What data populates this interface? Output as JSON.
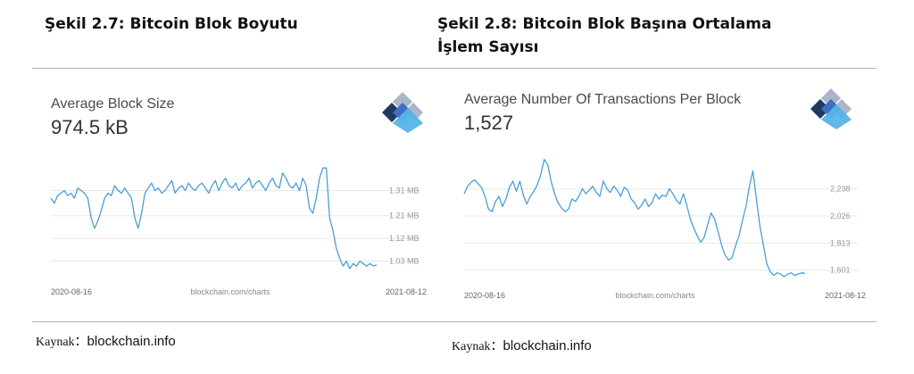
{
  "figures": [
    {
      "caption": "Şekil 2.7: Bitcoin Blok Boyutu",
      "source_label": "Kaynak：",
      "source_value": "blockchain.info"
    },
    {
      "caption": "Şekil 2.8: Bitcoin Blok Başına Ortalama İşlem Sayısı",
      "source_label": "Kaynak：",
      "source_value": "blockchain.info"
    }
  ],
  "colors": {
    "line": "#4a9ed8",
    "grid": "#e8e8e8",
    "text_muted": "#999999",
    "logo_dark": "#1f3a5f",
    "logo_mid": "#3d6fc4",
    "logo_light": "#57b3e8",
    "logo_pale": "#a9b6c8"
  },
  "logo_icon": "blockchain-cube-icon",
  "chart_data": [
    {
      "type": "line",
      "title": "Average Block Size",
      "headline_value": "974.5 kB",
      "x_start_label": "2020-08-16",
      "x_end_label": "2021-08-12",
      "watermark": "blockchain.com/charts",
      "y_ticks": [
        1.03,
        1.12,
        1.21,
        1.31
      ],
      "y_tick_labels": [
        "1.03 MB",
        "1.12 MB",
        "1.21 MB",
        "1.31 MB"
      ],
      "ylim": [
        0.95,
        1.5
      ],
      "y_unit": "MB",
      "values": [
        1.28,
        1.26,
        1.29,
        1.3,
        1.31,
        1.29,
        1.3,
        1.28,
        1.32,
        1.31,
        1.3,
        1.28,
        1.2,
        1.16,
        1.19,
        1.23,
        1.28,
        1.3,
        1.29,
        1.33,
        1.31,
        1.3,
        1.32,
        1.3,
        1.28,
        1.2,
        1.16,
        1.22,
        1.3,
        1.32,
        1.34,
        1.31,
        1.32,
        1.3,
        1.31,
        1.33,
        1.35,
        1.3,
        1.32,
        1.33,
        1.31,
        1.34,
        1.32,
        1.31,
        1.33,
        1.34,
        1.32,
        1.3,
        1.33,
        1.35,
        1.31,
        1.34,
        1.36,
        1.33,
        1.32,
        1.34,
        1.31,
        1.33,
        1.34,
        1.36,
        1.32,
        1.34,
        1.35,
        1.33,
        1.31,
        1.34,
        1.36,
        1.33,
        1.32,
        1.38,
        1.36,
        1.33,
        1.32,
        1.34,
        1.31,
        1.36,
        1.33,
        1.24,
        1.22,
        1.28,
        1.36,
        1.4,
        1.4,
        1.2,
        1.15,
        1.08,
        1.04,
        1.01,
        1.03,
        1.0,
        1.02,
        1.01,
        1.03,
        1.02,
        1.01,
        1.02,
        1.01,
        1.015
      ]
    },
    {
      "type": "line",
      "title": "Average Number Of Transactions Per Block",
      "headline_value": "1,527",
      "x_start_label": "2020-08-16",
      "x_end_label": "2021-08-12",
      "watermark": "blockchain.com/charts",
      "y_ticks": [
        1601,
        1813,
        2026,
        2238
      ],
      "y_tick_labels": [
        "1,601",
        "1,813",
        "2,026",
        "2,238"
      ],
      "ylim": [
        1480,
        2600
      ],
      "values": [
        2200,
        2260,
        2290,
        2310,
        2280,
        2250,
        2180,
        2080,
        2060,
        2140,
        2180,
        2100,
        2160,
        2250,
        2300,
        2220,
        2300,
        2190,
        2120,
        2180,
        2220,
        2270,
        2350,
        2470,
        2430,
        2300,
        2200,
        2130,
        2090,
        2060,
        2080,
        2160,
        2140,
        2180,
        2240,
        2200,
        2230,
        2260,
        2210,
        2180,
        2300,
        2240,
        2210,
        2260,
        2230,
        2180,
        2250,
        2230,
        2160,
        2130,
        2080,
        2110,
        2160,
        2100,
        2130,
        2200,
        2160,
        2190,
        2180,
        2240,
        2200,
        2150,
        2120,
        2200,
        2110,
        2000,
        1930,
        1870,
        1820,
        1860,
        1960,
        2050,
        2000,
        1900,
        1800,
        1720,
        1680,
        1700,
        1790,
        1870,
        1990,
        2100,
        2260,
        2380,
        2160,
        1950,
        1800,
        1650,
        1590,
        1560,
        1580,
        1570,
        1550,
        1570,
        1580,
        1560,
        1570,
        1580,
        1575
      ]
    }
  ]
}
